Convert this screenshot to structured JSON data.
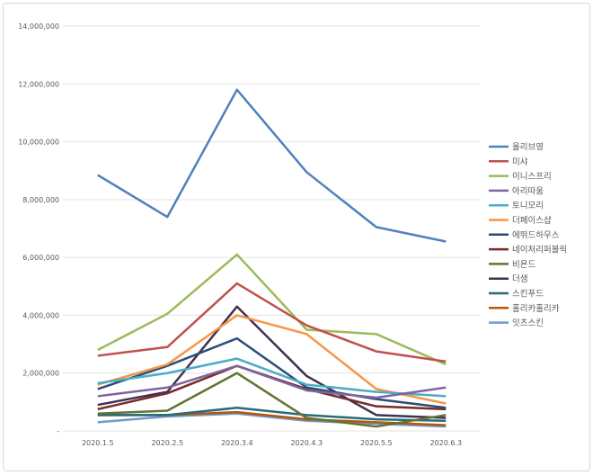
{
  "chart_data": {
    "type": "line",
    "title": "",
    "xlabel": "",
    "ylabel": "",
    "categories": [
      "2020.1.5",
      "2020.2.5",
      "2020.3.4",
      "2020.4.3",
      "2020.5.5",
      "2020.6.3"
    ],
    "ylim": [
      0,
      14000000
    ],
    "yticks": [
      0,
      2000000,
      4000000,
      6000000,
      8000000,
      10000000,
      12000000,
      14000000
    ],
    "ytick_labels": [
      "-",
      "2,000,000",
      "4,000,000",
      "6,000,000",
      "8,000,000",
      "10,000,000",
      "12,000,000",
      "14,000,000"
    ],
    "grid": true,
    "legend_position": "right",
    "series": [
      {
        "name": "올리브영",
        "color": "#4f81bd",
        "values": [
          8850000,
          7400000,
          11800000,
          8950000,
          7050000,
          6550000
        ]
      },
      {
        "name": "미샤",
        "color": "#c0504d",
        "values": [
          2600000,
          2900000,
          5100000,
          3650000,
          2750000,
          2400000
        ]
      },
      {
        "name": "이니스프리",
        "color": "#9bbb59",
        "values": [
          2800000,
          4050000,
          6100000,
          3500000,
          3350000,
          2300000
        ]
      },
      {
        "name": "아리따움",
        "color": "#8064a2",
        "values": [
          1200000,
          1500000,
          2250000,
          1400000,
          1150000,
          1500000
        ]
      },
      {
        "name": "토니모리",
        "color": "#4bacc6",
        "values": [
          1650000,
          2000000,
          2500000,
          1600000,
          1350000,
          1200000
        ]
      },
      {
        "name": "더페이스샵",
        "color": "#f79646",
        "values": [
          1600000,
          2300000,
          4000000,
          3350000,
          1450000,
          950000
        ]
      },
      {
        "name": "에뛰드하우스",
        "color": "#2c4d75",
        "values": [
          1450000,
          2250000,
          3200000,
          1500000,
          1100000,
          800000
        ]
      },
      {
        "name": "네이처리퍼블릭",
        "color": "#772c2a",
        "values": [
          750000,
          1300000,
          2250000,
          1450000,
          850000,
          750000
        ]
      },
      {
        "name": "비욘드",
        "color": "#5f7530",
        "values": [
          600000,
          700000,
          2000000,
          450000,
          150000,
          550000
        ]
      },
      {
        "name": "더샘",
        "color": "#403152",
        "values": [
          900000,
          1350000,
          4300000,
          1900000,
          550000,
          450000
        ]
      },
      {
        "name": "스킨푸드",
        "color": "#276a7c",
        "values": [
          550000,
          550000,
          800000,
          550000,
          400000,
          350000
        ]
      },
      {
        "name": "홀리카홀리카",
        "color": "#b65708",
        "values": [
          550000,
          550000,
          650000,
          400000,
          300000,
          200000
        ]
      },
      {
        "name": "잇츠스킨",
        "color": "#729aca",
        "values": [
          300000,
          500000,
          600000,
          350000,
          250000,
          150000
        ]
      }
    ]
  }
}
